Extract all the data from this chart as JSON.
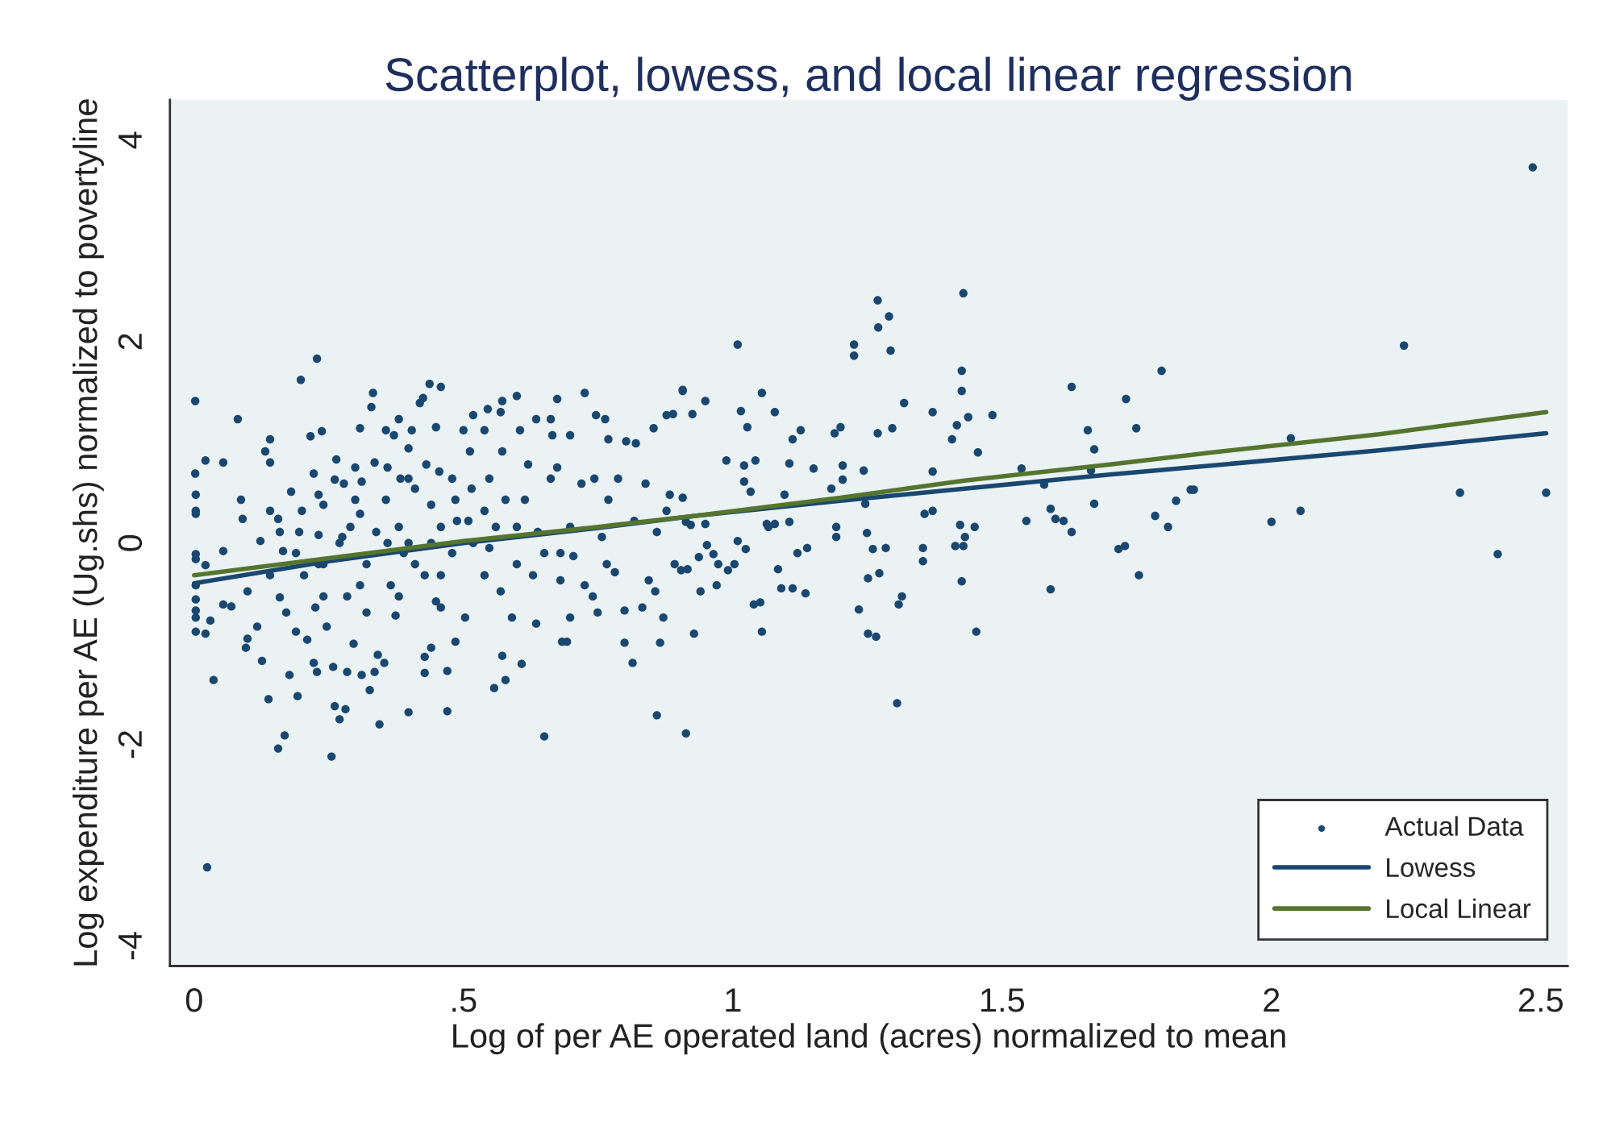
{
  "chart_data": {
    "type": "scatter",
    "title": "Scatterplot, lowess, and local linear regression",
    "xlabel": "Log of per AE operated land (acres) normalized to mean",
    "ylabel": "Log expenditure per AE (Ug.shs) normalized to povertyline",
    "xlim": [
      -0.045,
      2.55
    ],
    "ylim": [
      -4.2,
      4.4
    ],
    "xticks": [
      0,
      {
        "value": 0.5,
        "label": ".5"
      },
      1,
      1.5,
      2,
      2.5
    ],
    "yticks": [
      -4,
      -2,
      0,
      2,
      4
    ],
    "grid": false,
    "legend": "bottom right",
    "series": [
      {
        "name": "Actual Data",
        "marker": "circle",
        "color": "#1a476f",
        "x": [
          2.485,
          2.246,
          2.036,
          2.0,
          2.054,
          2.35,
          2.51,
          2.42,
          1.856,
          1.428,
          1.269,
          1.29,
          1.27,
          1.225,
          1.225,
          1.009,
          1.293,
          1.425,
          1.796,
          1.425,
          1.629,
          1.73,
          1.318,
          1.054,
          0.907,
          0.949,
          0.925,
          1.015,
          1.078,
          1.126,
          1.189,
          1.2,
          1.269,
          1.296,
          1.371,
          1.416,
          1.437,
          1.482,
          1.407,
          1.455,
          1.659,
          1.749,
          1.671,
          1.111,
          1.027,
          0.988,
          1.042,
          1.021,
          1.105,
          1.15,
          1.204,
          1.243,
          1.371,
          1.021,
          1.033,
          1.204,
          1.183,
          1.096,
          0.907,
          1.246,
          1.536,
          1.578,
          1.665,
          1.85,
          1.823,
          1.671,
          1.59,
          1.599,
          1.614,
          1.545,
          1.629,
          1.784,
          1.808,
          1.716,
          1.728,
          1.754,
          1.59,
          1.356,
          1.371,
          1.353,
          1.353,
          1.422,
          1.449,
          1.431,
          1.413,
          1.428,
          1.425,
          1.452,
          1.249,
          1.26,
          1.284,
          1.272,
          1.251,
          1.234,
          1.251,
          1.266,
          1.308,
          1.314,
          1.305,
          1.192,
          1.192,
          1.138,
          1.12,
          1.084,
          1.09,
          1.111,
          1.135,
          1.039,
          1.051,
          1.054,
          0.928,
          0.913,
          0.94,
          0.97,
          0.991,
          1.003,
          1.009,
          1.024,
          0.937,
          0.952,
          0.964,
          0.973,
          0.904,
          0.916,
          0.913,
          0.922,
          0.949,
          1.063,
          1.078,
          1.105,
          1.066,
          0.002,
          0.002,
          0.003,
          0.003,
          0.003,
          0.003,
          0.003,
          0.003,
          0.003,
          0.003,
          0.003,
          0.003,
          0.021,
          0.021,
          0.03,
          0.021,
          0.036,
          0.024,
          0.054,
          0.054,
          0.054,
          0.069,
          0.081,
          0.087,
          0.09,
          0.096,
          0.099,
          0.099,
          0.117,
          0.123,
          0.126,
          0.132,
          0.141,
          0.141,
          0.138,
          0.156,
          0.159,
          0.156,
          0.168,
          0.177,
          0.165,
          0.18,
          0.171,
          0.198,
          0.228,
          0.216,
          0.237,
          0.192,
          0.195,
          0.204,
          0.189,
          0.21,
          0.222,
          0.231,
          0.231,
          0.231,
          0.225,
          0.222,
          0.228,
          0.255,
          0.261,
          0.27,
          0.281,
          0.258,
          0.246,
          0.261,
          0.264,
          0.275,
          0.284,
          0.284,
          0.296,
          0.308,
          0.299,
          0.311,
          0.311,
          0.332,
          0.329,
          0.335,
          0.326,
          0.344,
          0.335,
          0.341,
          0.308,
          0.32,
          0.32,
          0.356,
          0.356,
          0.365,
          0.353,
          0.38,
          0.371,
          0.383,
          0.38,
          0.374,
          0.404,
          0.398,
          0.41,
          0.398,
          0.398,
          0.419,
          0.425,
          0.437,
          0.458,
          0.431,
          0.428,
          0.428,
          0.428,
          0.44,
          0.449,
          0.455,
          0.458,
          0.449,
          0.47,
          0.47,
          0.485,
          0.479,
          0.485,
          0.5,
          0.518,
          0.512,
          0.515,
          0.509,
          0.503,
          0.539,
          0.545,
          0.548,
          0.548,
          0.557,
          0.572,
          0.569,
          0.572,
          0.578,
          0.569,
          0.572,
          0.599,
          0.605,
          0.599,
          0.59,
          0.62,
          0.614,
          0.608,
          0.629,
          0.635,
          0.635,
          0.65,
          0.662,
          0.665,
          0.662,
          0.65,
          0.674,
          0.674,
          0.68,
          0.683,
          0.692,
          0.698,
          0.704,
          0.698,
          0.725,
          0.725,
          0.719,
          0.746,
          0.749,
          0.743,
          0.74,
          0.763,
          0.769,
          0.769,
          0.766,
          0.781,
          0.787,
          0.799,
          0.799,
          0.802,
          0.814,
          0.82,
          0.832,
          0.844,
          0.853,
          0.859,
          0.856,
          0.859,
          0.865,
          0.871,
          0.877,
          0.889,
          0.892,
          0.907,
          0.883,
          0.877,
          0.838,
          0.27,
          0.24,
          0.189,
          0.29,
          0.338,
          0.389,
          0.44,
          0.488,
          0.518,
          0.56,
          0.638,
          0.698,
          0.757,
          0.817,
          0.141,
          0.159,
          0.24,
          0.299,
          0.359,
          0.41,
          0.458,
          0.539,
          0.599,
          0.68,
          0.24,
          0.308,
          0.38,
          0.458,
          0.141,
          0.2,
          0.44,
          0.578,
          0.539,
          0.479,
          0.398,
          0.359,
          0.278
        ],
        "values": [
          3.73,
          1.96,
          1.04,
          0.21,
          0.32,
          0.5,
          0.5,
          -0.11,
          0.53,
          2.48,
          2.41,
          2.25,
          2.14,
          1.97,
          1.86,
          1.97,
          1.91,
          1.71,
          1.71,
          1.51,
          1.55,
          1.43,
          1.39,
          1.49,
          1.52,
          1.41,
          1.28,
          1.31,
          1.3,
          1.12,
          1.09,
          1.15,
          1.09,
          1.14,
          1.3,
          1.17,
          1.25,
          1.27,
          1.03,
          0.9,
          1.12,
          1.14,
          0.93,
          1.03,
          1.15,
          0.82,
          0.82,
          0.77,
          0.79,
          0.74,
          0.77,
          0.72,
          0.71,
          0.61,
          0.51,
          0.63,
          0.54,
          0.48,
          0.45,
          0.39,
          0.74,
          0.58,
          0.72,
          0.53,
          0.42,
          0.39,
          0.34,
          0.24,
          0.22,
          0.22,
          0.11,
          0.27,
          0.16,
          -0.06,
          -0.03,
          -0.32,
          -0.46,
          0.29,
          0.32,
          -0.05,
          -0.18,
          0.18,
          0.16,
          0.06,
          -0.03,
          -0.03,
          -0.38,
          -0.88,
          0.1,
          -0.06,
          -0.05,
          -0.3,
          -0.35,
          -0.66,
          -0.9,
          -0.93,
          -0.61,
          -0.53,
          -1.59,
          0.16,
          0.06,
          -0.05,
          -0.1,
          -0.26,
          -0.45,
          -0.45,
          -0.5,
          -0.61,
          -0.59,
          -0.88,
          -0.9,
          -1.89,
          -0.48,
          -0.42,
          -0.27,
          -0.21,
          0.02,
          -0.06,
          -0.14,
          -0.02,
          -0.11,
          -0.21,
          -0.27,
          -0.26,
          0.21,
          0.18,
          0.19,
          0.19,
          0.19,
          0.21,
          0.16,
          1.41,
          0.69,
          0.48,
          0.32,
          0.29,
          -0.11,
          -0.16,
          -0.42,
          -0.56,
          -0.67,
          -0.74,
          -0.88,
          0.82,
          -0.22,
          -0.77,
          -0.9,
          -1.36,
          -3.22,
          0.8,
          -0.08,
          -0.61,
          -0.63,
          1.23,
          0.43,
          0.24,
          -1.04,
          -0.95,
          -0.48,
          -0.83,
          0.02,
          -1.17,
          0.91,
          1.03,
          0.8,
          -1.55,
          0.24,
          -0.54,
          -2.04,
          -1.91,
          -1.31,
          -0.08,
          0.51,
          -0.69,
          1.62,
          1.83,
          1.06,
          1.11,
          -1.52,
          0.11,
          -0.32,
          -0.88,
          -0.96,
          0.69,
          0.48,
          0.08,
          -0.21,
          -0.64,
          -1.19,
          -1.28,
          -2.12,
          -1.62,
          -1.75,
          -1.65,
          -1.23,
          -0.83,
          0.63,
          0.83,
          0.06,
          -0.53,
          -1.28,
          -1.0,
          1.14,
          0.75,
          0.61,
          -1.31,
          1.49,
          1.35,
          0.8,
          -1.46,
          -1.8,
          -1.28,
          -1.11,
          0.29,
          -0.21,
          -0.69,
          1.12,
          0.43,
          -0.42,
          -1.19,
          1.23,
          1.07,
          0.64,
          0.16,
          -0.72,
          1.12,
          0.94,
          0.54,
          0.0,
          -1.68,
          1.39,
          1.44,
          1.58,
          1.55,
          0.78,
          -0.32,
          -1.29,
          -1.13,
          -1.04,
          1.15,
          0.71,
          0.16,
          -0.58,
          -1.67,
          -1.27,
          -0.98,
          -0.1,
          0.43,
          1.12,
          1.27,
          0.91,
          0.54,
          0.22,
          -0.74,
          1.12,
          1.33,
          0.64,
          -0.05,
          -1.44,
          1.41,
          1.3,
          -1.12,
          -1.36,
          -0.48,
          0.91,
          1.46,
          1.12,
          0.16,
          -0.74,
          0.78,
          0.43,
          -1.2,
          -0.32,
          -0.8,
          1.23,
          -1.92,
          1.23,
          1.07,
          0.64,
          -0.1,
          1.43,
          0.75,
          -0.37,
          -0.98,
          -0.98,
          1.07,
          -0.13,
          -0.74,
          1.49,
          -0.42,
          0.59,
          1.27,
          -0.69,
          0.64,
          -0.53,
          1.23,
          1.03,
          0.43,
          -0.21,
          -0.29,
          0.64,
          -0.67,
          -0.99,
          1.01,
          -1.19,
          0.99,
          -0.64,
          -0.37,
          1.14,
          0.11,
          -0.48,
          -1.71,
          -0.99,
          -0.74,
          1.27,
          1.28,
          -0.21,
          1.51,
          0.48,
          0.32,
          0.59,
          0.0,
          -0.21,
          -0.1,
          0.16,
          0.11,
          -0.1,
          0.0,
          0.22,
          0.0,
          0.16,
          0.11,
          0.16,
          0.06,
          0.22,
          -0.32,
          0.11,
          0.38,
          0.43,
          0.0,
          -0.21,
          -0.32,
          -0.32,
          -0.21,
          -0.1,
          -0.53,
          -0.42,
          -0.53,
          -0.64,
          0.32,
          0.32,
          0.38,
          0.43,
          0.32,
          0.64,
          0.64,
          0.75,
          0.59
        ]
      },
      {
        "name": "Lowess",
        "type": "line",
        "line_style": "solid",
        "color": "#1a476f",
        "x": [
          0,
          0.25,
          0.5,
          0.75,
          0.93,
          1.2,
          1.43,
          1.7,
          1.89,
          2.2,
          2.51
        ],
        "values": [
          -0.4,
          -0.18,
          0.0,
          0.15,
          0.27,
          0.42,
          0.54,
          0.68,
          0.77,
          0.92,
          1.09
        ]
      },
      {
        "name": "Local Linear",
        "type": "line",
        "line_style": "solid",
        "color": "#55752f",
        "x": [
          0,
          0.25,
          0.5,
          0.75,
          0.93,
          1.2,
          1.43,
          1.7,
          1.89,
          2.2,
          2.51
        ],
        "values": [
          -0.32,
          -0.15,
          0.02,
          0.16,
          0.27,
          0.45,
          0.62,
          0.78,
          0.9,
          1.08,
          1.3
        ]
      }
    ]
  }
}
